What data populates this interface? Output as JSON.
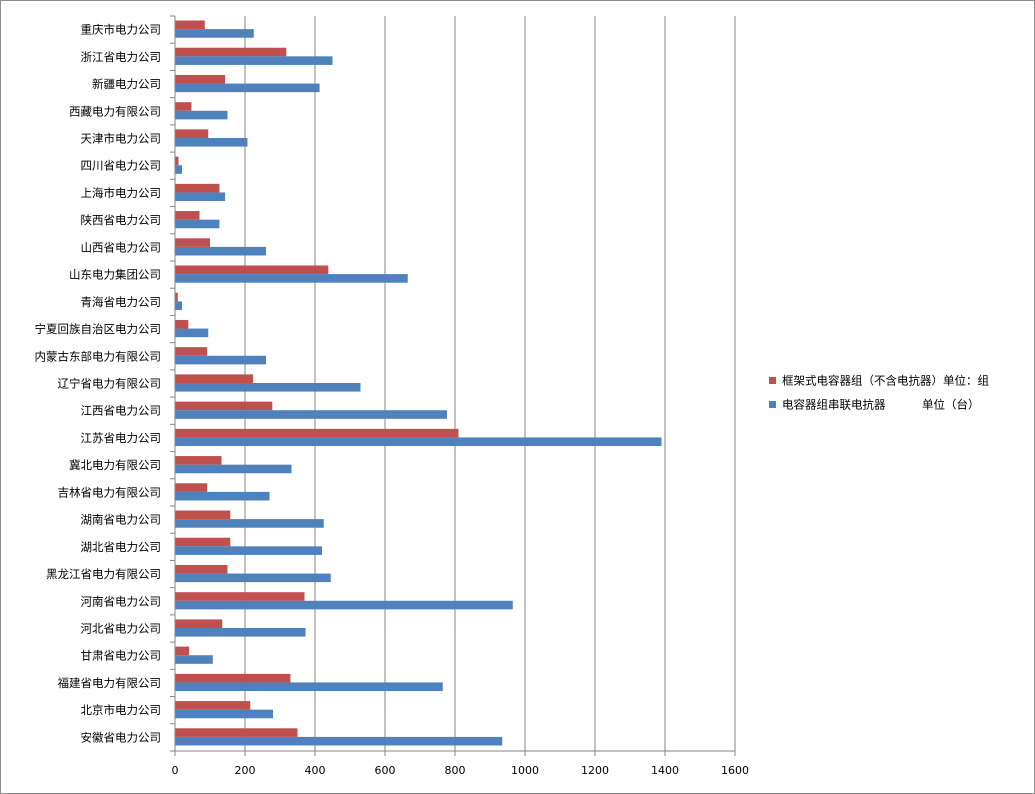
{
  "chart_data": {
    "type": "bar",
    "orientation": "horizontal",
    "categories": [
      "重庆市电力公司",
      "浙江省电力公司",
      "新疆电力公司",
      "西藏电力有限公司",
      "天津市电力公司",
      "四川省电力公司",
      "上海市电力公司",
      "陕西省电力公司",
      "山西省电力公司",
      "山东电力集团公司",
      "青海省电力公司",
      "宁夏回族自治区电力公司",
      "内蒙古东部电力有限公司",
      "辽宁省电力有限公司",
      "江西省电力公司",
      "江苏省电力公司",
      "冀北电力有限公司",
      "吉林省电力有限公司",
      "湖南省电力公司",
      "湖北省电力公司",
      "黑龙江省电力有限公司",
      "河南省电力公司",
      "河北省电力公司",
      "甘肃省电力公司",
      "福建省电力有限公司",
      "北京市电力公司",
      "安徽省电力公司"
    ],
    "series": [
      {
        "name": "框架式电容器组（不含电抗器）单位：组",
        "color": "#c0504d",
        "values": [
          85,
          318,
          143,
          47,
          95,
          10,
          127,
          70,
          100,
          438,
          8,
          38,
          92,
          223,
          278,
          810,
          133,
          92,
          158,
          158,
          150,
          370,
          135,
          40,
          330,
          215,
          350
        ]
      },
      {
        "name": "电容器组串联电抗器          单位（台）",
        "color": "#4f81bd",
        "values": [
          225,
          450,
          413,
          150,
          207,
          20,
          143,
          127,
          260,
          665,
          20,
          95,
          260,
          530,
          777,
          1390,
          333,
          270,
          425,
          420,
          445,
          965,
          373,
          108,
          765,
          280,
          935
        ]
      }
    ],
    "x_ticks": [
      "0",
      "200",
      "400",
      "600",
      "800",
      "1000",
      "1200",
      "1400",
      "1600"
    ],
    "xlim": [
      0,
      1600
    ],
    "grid": "vertical",
    "legend_position": "right"
  }
}
